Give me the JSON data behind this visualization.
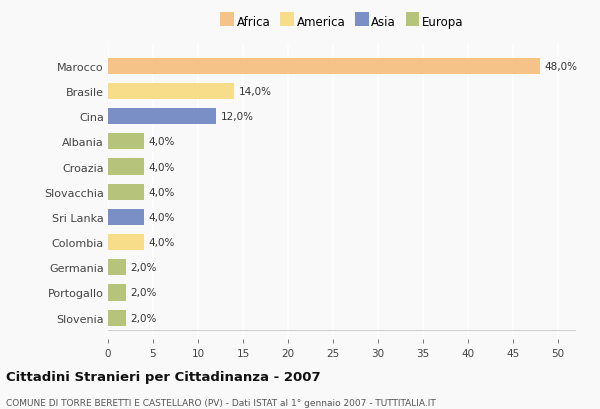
{
  "categories": [
    "Marocco",
    "Brasile",
    "Cina",
    "Albania",
    "Croazia",
    "Slovacchia",
    "Sri Lanka",
    "Colombia",
    "Germania",
    "Portogallo",
    "Slovenia"
  ],
  "values": [
    48.0,
    14.0,
    12.0,
    4.0,
    4.0,
    4.0,
    4.0,
    4.0,
    2.0,
    2.0,
    2.0
  ],
  "colors": [
    "#f5c287",
    "#f7dc8a",
    "#7b8fc7",
    "#b5c47a",
    "#b5c47a",
    "#b5c47a",
    "#7b8fc7",
    "#f7dc8a",
    "#b5c47a",
    "#b5c47a",
    "#b5c47a"
  ],
  "legend_labels": [
    "Africa",
    "America",
    "Asia",
    "Europa"
  ],
  "legend_colors": [
    "#f5c287",
    "#f7dc8a",
    "#7b8fc7",
    "#b5c47a"
  ],
  "title": "Cittadini Stranieri per Cittadinanza - 2007",
  "subtitle": "COMUNE DI TORRE BERETTI E CASTELLARO (PV) - Dati ISTAT al 1° gennaio 2007 - TUTTITALIA.IT",
  "xlim": [
    0,
    52
  ],
  "xticks": [
    0,
    5,
    10,
    15,
    20,
    25,
    30,
    35,
    40,
    45,
    50
  ],
  "background_color": "#f9f9f9",
  "grid_color": "#ffffff"
}
